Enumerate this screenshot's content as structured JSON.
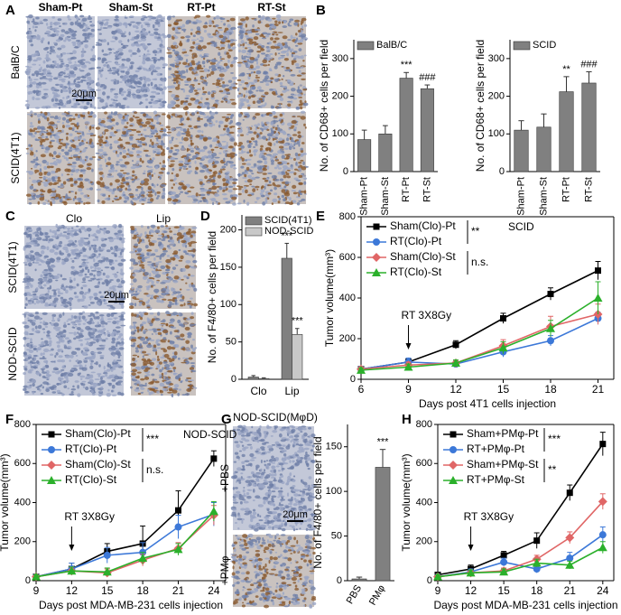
{
  "letters": [
    "A",
    "B",
    "C",
    "D",
    "E",
    "F",
    "G",
    "H"
  ],
  "panels": {
    "A": {
      "columns": [
        "Sham-Pt",
        "Sham-St",
        "RT-Pt",
        "RT-St"
      ],
      "rows": [
        "BalB/C",
        "SCID(4T1)"
      ],
      "scale": "20μm"
    },
    "C": {
      "columns": [
        "Clo",
        "Lip"
      ],
      "rows": [
        "SCID(4T1)",
        "NOD-SCID"
      ],
      "scale": "20μm"
    },
    "G": {
      "title": "NOD-SCID(MφD)",
      "rows": [
        "+PBS",
        "+PMφ"
      ],
      "scale": "20μm"
    }
  },
  "chart_data": [
    {
      "type": "bar",
      "categories": [
        "Sham-Pt",
        "Sham-St",
        "RT-Pt",
        "RT-St"
      ],
      "ylabel": "No. of CD68+ cells per field",
      "ylim": [
        0,
        350
      ],
      "yticks": [
        0,
        100,
        200,
        300
      ],
      "series": [
        {
          "name": "BalB/C",
          "color": "#808080",
          "values": [
            85,
            100,
            248,
            220
          ],
          "errors": [
            25,
            22,
            15,
            10
          ],
          "annotations": [
            null,
            null,
            "***",
            "###"
          ]
        }
      ]
    },
    {
      "type": "bar",
      "categories": [
        "Sham-Pt",
        "Sham-St",
        "RT-Pt",
        "RT-St"
      ],
      "ylabel": "No. of CD68+ cells per field",
      "ylim": [
        0,
        350
      ],
      "yticks": [
        0,
        100,
        200,
        300
      ],
      "series": [
        {
          "name": "SCID",
          "color": "#808080",
          "values": [
            110,
            118,
            212,
            235
          ],
          "errors": [
            25,
            35,
            40,
            30
          ],
          "annotations": [
            null,
            null,
            "**",
            "###"
          ]
        }
      ]
    },
    {
      "type": "bar",
      "categories": [
        "Clo",
        "Lip"
      ],
      "ylabel": "No. of F4/80+ cells per field",
      "ylim": [
        0,
        220
      ],
      "yticks": [
        0,
        50,
        100,
        150,
        200
      ],
      "series": [
        {
          "name": "SCID(4T1)",
          "color": "#808080",
          "values": [
            3,
            162
          ],
          "errors": [
            2,
            20
          ],
          "annotations": [
            null,
            "***"
          ]
        },
        {
          "name": "NOD-SCID",
          "color": "#c8c8c8",
          "values": [
            1,
            60
          ],
          "errors": [
            1,
            8
          ],
          "annotations": [
            null,
            "***"
          ]
        }
      ]
    },
    {
      "type": "line",
      "title": "SCID",
      "xlabel": "Days post 4T1 cells injection",
      "ylabel": "Tumor volume(mm³)",
      "x": [
        6,
        9,
        12,
        15,
        18,
        21
      ],
      "xlim": [
        6,
        22
      ],
      "xticks": [
        6,
        9,
        12,
        15,
        18,
        21
      ],
      "ylim": [
        0,
        800
      ],
      "yticks": [
        0,
        200,
        400,
        600,
        800
      ],
      "treatment_day": 9,
      "treatment": "RT 3X8Gy",
      "significance": [
        "**",
        "n.s."
      ],
      "series": [
        {
          "name": "Sham(Clo)-Pt",
          "color": "#000000",
          "marker": "square",
          "values": [
            50,
            85,
            170,
            300,
            420,
            535
          ],
          "errors": [
            10,
            15,
            20,
            25,
            30,
            45
          ]
        },
        {
          "name": "RT(Clo)-Pt",
          "color": "#3c78d8",
          "marker": "circle",
          "values": [
            50,
            85,
            75,
            135,
            190,
            300
          ],
          "errors": [
            10,
            20,
            15,
            25,
            25,
            30
          ]
        },
        {
          "name": "Sham(Clo)-St",
          "color": "#e06666",
          "marker": "diamond",
          "values": [
            50,
            70,
            80,
            165,
            260,
            320
          ],
          "errors": [
            10,
            15,
            15,
            30,
            50,
            50
          ]
        },
        {
          "name": "RT(Clo)-St",
          "color": "#2bb02b",
          "marker": "triangle",
          "values": [
            45,
            60,
            80,
            155,
            250,
            400
          ],
          "errors": [
            10,
            15,
            15,
            30,
            40,
            80
          ]
        }
      ]
    },
    {
      "type": "line",
      "title": "NOD-SCID",
      "xlabel": "Days post MDA-MB-231 cells injection",
      "ylabel": "Tumor volume(mm³)",
      "x": [
        9,
        12,
        15,
        18,
        21,
        24
      ],
      "xlim": [
        9,
        25
      ],
      "xticks": [
        9,
        12,
        15,
        18,
        21,
        24
      ],
      "ylim": [
        0,
        800
      ],
      "yticks": [
        0,
        200,
        400,
        600,
        800
      ],
      "treatment_day": 12,
      "treatment": "RT 3X8Gy",
      "significance": [
        "***",
        "n.s."
      ],
      "series": [
        {
          "name": "Sham(Clo)-Pt",
          "color": "#000000",
          "marker": "square",
          "values": [
            20,
            60,
            150,
            190,
            360,
            625
          ],
          "errors": [
            10,
            30,
            40,
            90,
            100,
            40
          ]
        },
        {
          "name": "RT(Clo)-Pt",
          "color": "#3c78d8",
          "marker": "circle",
          "values": [
            20,
            60,
            130,
            145,
            275,
            340
          ],
          "errors": [
            10,
            30,
            40,
            50,
            60,
            60
          ]
        },
        {
          "name": "Sham(Clo)-St",
          "color": "#e06666",
          "marker": "diamond",
          "values": [
            20,
            50,
            40,
            105,
            165,
            335
          ],
          "errors": [
            10,
            20,
            20,
            30,
            30,
            50
          ]
        },
        {
          "name": "RT(Clo)-St",
          "color": "#2bb02b",
          "marker": "triangle",
          "values": [
            20,
            50,
            45,
            115,
            160,
            355
          ],
          "errors": [
            10,
            20,
            20,
            30,
            30,
            50
          ]
        }
      ]
    },
    {
      "type": "bar",
      "categories": [
        "PBS",
        "PMφ"
      ],
      "ylabel": "No. of F4/80+ cells per field",
      "ylim": [
        0,
        175
      ],
      "yticks": [
        0,
        50,
        100,
        150
      ],
      "color": "#808080",
      "values": [
        2,
        127
      ],
      "errors": [
        2,
        20
      ],
      "annotations": [
        null,
        "***"
      ]
    },
    {
      "type": "line",
      "xlabel": "Days post MDA-MB-231 cells injection",
      "ylabel": "Tumor volume(mm³)",
      "x": [
        9,
        12,
        15,
        18,
        21,
        24
      ],
      "xlim": [
        9,
        25
      ],
      "xticks": [
        9,
        12,
        15,
        18,
        21,
        24
      ],
      "ylim": [
        0,
        800
      ],
      "yticks": [
        0,
        200,
        400,
        600,
        800
      ],
      "treatment_day": 12,
      "treatment": "RT 3X8Gy",
      "significance": [
        "***",
        "**"
      ],
      "series": [
        {
          "name": "Sham+PMφ-Pt",
          "color": "#000000",
          "marker": "square",
          "values": [
            30,
            60,
            130,
            205,
            450,
            700
          ],
          "errors": [
            10,
            20,
            20,
            40,
            40,
            60
          ]
        },
        {
          "name": "RT+PMφ-Pt",
          "color": "#3c78d8",
          "marker": "circle",
          "values": [
            20,
            45,
            95,
            60,
            115,
            235
          ],
          "errors": [
            10,
            15,
            20,
            20,
            30,
            40
          ]
        },
        {
          "name": "Sham+PMφ-St",
          "color": "#e06666",
          "marker": "diamond",
          "values": [
            20,
            40,
            50,
            110,
            220,
            405
          ],
          "errors": [
            10,
            15,
            15,
            20,
            30,
            40
          ]
        },
        {
          "name": "RT+PMφ-St",
          "color": "#2bb02b",
          "marker": "triangle",
          "values": [
            20,
            40,
            45,
            90,
            80,
            170
          ],
          "errors": [
            10,
            15,
            15,
            20,
            20,
            30
          ]
        }
      ]
    }
  ]
}
